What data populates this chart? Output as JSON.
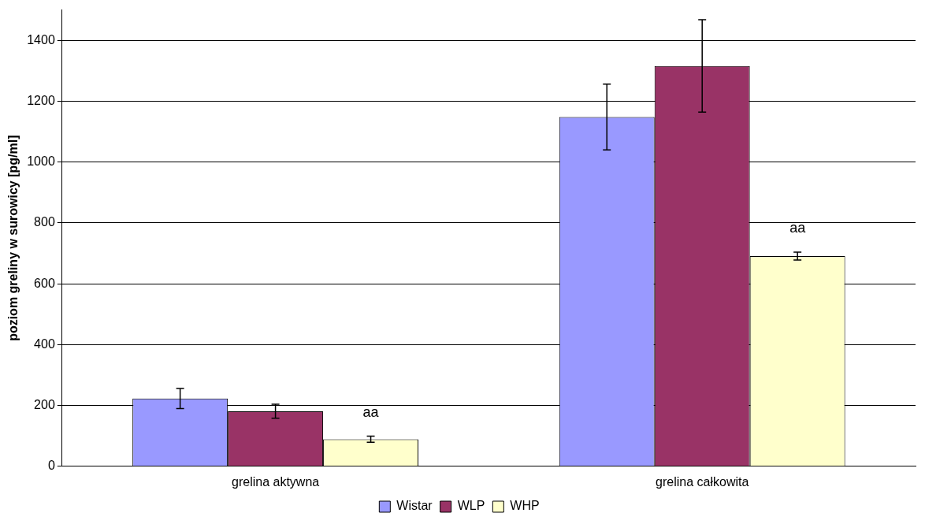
{
  "chart_data": {
    "type": "bar",
    "ylabel": "poziom greliny w surowicy [pg/ml]",
    "categories": [
      "grelina aktywna",
      "grelina całkowita"
    ],
    "series": [
      {
        "name": "Wistar",
        "color": "#9999ff",
        "values": [
          223,
          1148
        ],
        "errors": [
          33,
          108
        ]
      },
      {
        "name": "WLP",
        "color": "#993366",
        "values": [
          181,
          1316
        ],
        "errors": [
          23,
          152
        ]
      },
      {
        "name": "WHP",
        "color": "#ffffcc",
        "values": [
          89,
          691
        ],
        "errors": [
          10,
          13
        ]
      }
    ],
    "ylim": [
      0,
      1500
    ],
    "yticks": [
      0,
      200,
      400,
      600,
      800,
      1000,
      1200,
      1400
    ],
    "grid": "y",
    "legend": "bottom",
    "annotations": [
      "aa",
      "aa"
    ]
  }
}
